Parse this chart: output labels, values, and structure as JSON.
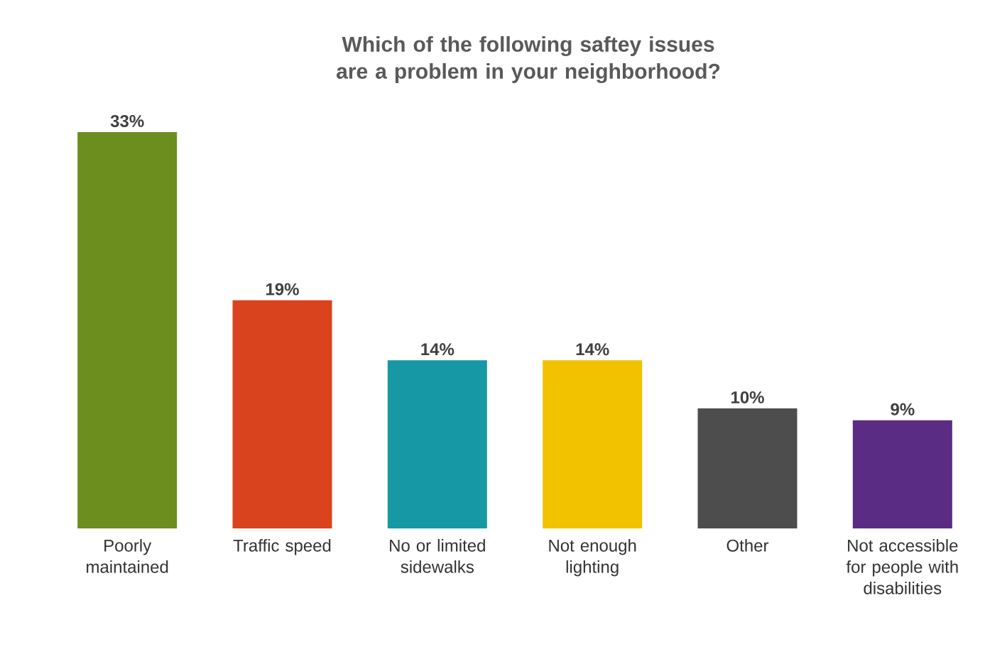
{
  "chart_data": {
    "type": "bar",
    "title": "Which of the following saftey issues are a problem in your neighborhood?",
    "categories": [
      "Poorly maintained",
      "Traffic speed",
      "No or limited sidewalks",
      "Not enough lighting",
      "Other",
      "Not accessible for people with disabilities"
    ],
    "values": [
      33,
      19,
      14,
      14,
      10,
      9
    ],
    "value_labels": [
      "33%",
      "19%",
      "14%",
      "14%",
      "10%",
      "9%"
    ],
    "colors": [
      "#6b8e1e",
      "#d9431e",
      "#1799a5",
      "#f2c200",
      "#4d4d4d",
      "#5b2c83"
    ]
  }
}
